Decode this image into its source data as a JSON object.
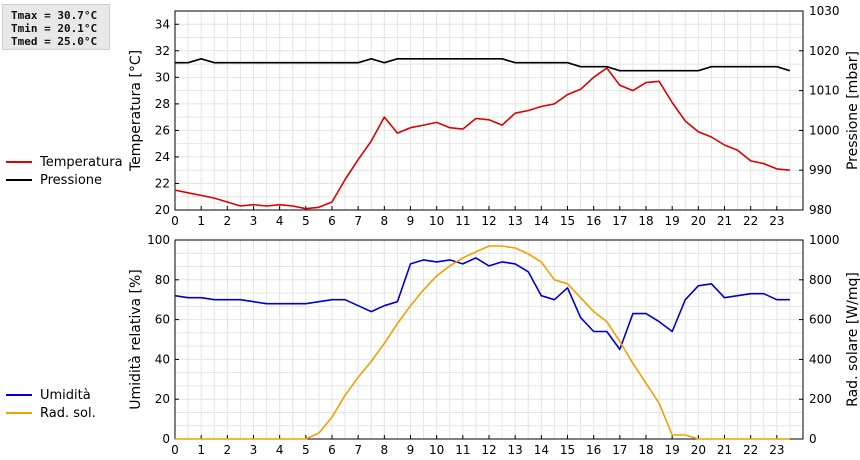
{
  "stats": {
    "tmax": "Tmax = 30.7°C",
    "tmin": "Tmin = 20.1°C",
    "tmed": "Tmed = 25.0°C"
  },
  "legend_top": [
    {
      "label": "Temperatura",
      "color": "#dd0000"
    },
    {
      "label": "Pressione",
      "color": "#000000"
    }
  ],
  "legend_bottom": [
    {
      "label": "Umidità",
      "color": "#0000cc"
    },
    {
      "label": "Rad. sol.",
      "color": "#f0a000"
    }
  ],
  "chart_data": [
    {
      "type": "line",
      "xlabel": "",
      "xlim": [
        0,
        24
      ],
      "x_ticks": [
        0,
        1,
        2,
        3,
        4,
        5,
        6,
        7,
        8,
        9,
        10,
        11,
        12,
        13,
        14,
        15,
        16,
        17,
        18,
        19,
        20,
        21,
        22,
        23
      ],
      "grid": true,
      "y_left": {
        "label": "Temperatura [°C]",
        "lim": [
          20,
          35
        ],
        "ticks": [
          20,
          22,
          24,
          26,
          28,
          30,
          32,
          34
        ]
      },
      "y_right": {
        "label": "Pressione [mbar]",
        "lim": [
          980,
          1030
        ],
        "ticks": [
          980,
          990,
          1000,
          1010,
          1020,
          1030
        ]
      },
      "series": [
        {
          "name": "Temperatura",
          "axis": "left",
          "color": "#dd0000",
          "x": [
            0,
            0.5,
            1,
            1.5,
            2,
            2.5,
            3,
            3.5,
            4,
            4.5,
            5,
            5.5,
            6,
            6.5,
            7,
            7.5,
            8,
            8.5,
            9,
            9.5,
            10,
            10.5,
            11,
            11.5,
            12,
            12.5,
            13,
            13.5,
            14,
            14.5,
            15,
            15.5,
            16,
            16.5,
            17,
            17.5,
            18,
            18.5,
            19,
            19.5,
            20,
            20.5,
            21,
            21.5,
            22,
            22.5,
            23,
            23.5
          ],
          "values": [
            21.5,
            21.3,
            21.1,
            20.9,
            20.6,
            20.3,
            20.4,
            20.3,
            20.4,
            20.3,
            20.1,
            20.2,
            20.6,
            22.3,
            23.8,
            25.2,
            27.0,
            25.8,
            26.2,
            26.4,
            26.6,
            26.2,
            26.1,
            26.9,
            26.8,
            26.4,
            27.3,
            27.5,
            27.8,
            28.0,
            28.7,
            29.1,
            30.0,
            30.7,
            29.4,
            29.0,
            29.6,
            29.7,
            28.1,
            26.7,
            25.9,
            25.5,
            24.9,
            24.5,
            23.7,
            23.5,
            23.1,
            23.0
          ]
        },
        {
          "name": "Pressione",
          "axis": "right",
          "color": "#000000",
          "x": [
            0,
            0.5,
            1,
            1.5,
            2,
            2.5,
            3,
            3.5,
            4,
            4.5,
            5,
            5.5,
            6,
            6.5,
            7,
            7.5,
            8,
            8.5,
            9,
            9.5,
            10,
            10.5,
            11,
            11.5,
            12,
            12.5,
            13,
            13.5,
            14,
            14.5,
            15,
            15.5,
            16,
            16.5,
            17,
            17.5,
            18,
            18.5,
            19,
            19.5,
            20,
            20.5,
            21,
            21.5,
            22,
            22.5,
            23,
            23.5
          ],
          "values": [
            1017,
            1017,
            1018,
            1017,
            1017,
            1017,
            1017,
            1017,
            1017,
            1017,
            1017,
            1017,
            1017,
            1017,
            1017,
            1018,
            1017,
            1018,
            1018,
            1018,
            1018,
            1018,
            1018,
            1018,
            1018,
            1018,
            1017,
            1017,
            1017,
            1017,
            1017,
            1016,
            1016,
            1016,
            1015,
            1015,
            1015,
            1015,
            1015,
            1015,
            1015,
            1016,
            1016,
            1016,
            1016,
            1016,
            1016,
            1015
          ]
        }
      ]
    },
    {
      "type": "line",
      "xlabel": "",
      "xlim": [
        0,
        24
      ],
      "x_ticks": [
        0,
        1,
        2,
        3,
        4,
        5,
        6,
        7,
        8,
        9,
        10,
        11,
        12,
        13,
        14,
        15,
        16,
        17,
        18,
        19,
        20,
        21,
        22,
        23
      ],
      "grid": true,
      "y_left": {
        "label": "Umidità relativa [%]",
        "lim": [
          0,
          100
        ],
        "ticks": [
          0,
          20,
          40,
          60,
          80,
          100
        ]
      },
      "y_right": {
        "label": "Rad. solare [W/mq]",
        "lim": [
          0,
          1000
        ],
        "ticks": [
          0,
          200,
          400,
          600,
          800,
          1000
        ]
      },
      "series": [
        {
          "name": "Umidità",
          "axis": "left",
          "color": "#0000cc",
          "x": [
            0,
            0.5,
            1,
            1.5,
            2,
            2.5,
            3,
            3.5,
            4,
            4.5,
            5,
            5.5,
            6,
            6.5,
            7,
            7.5,
            8,
            8.5,
            9,
            9.5,
            10,
            10.5,
            11,
            11.5,
            12,
            12.5,
            13,
            13.5,
            14,
            14.5,
            15,
            15.5,
            16,
            16.5,
            17,
            17.5,
            18,
            18.5,
            19,
            19.5,
            20,
            20.5,
            21,
            21.5,
            22,
            22.5,
            23,
            23.5
          ],
          "values": [
            72,
            71,
            71,
            70,
            70,
            70,
            69,
            68,
            68,
            68,
            68,
            69,
            70,
            70,
            67,
            64,
            67,
            69,
            88,
            90,
            89,
            90,
            88,
            91,
            87,
            89,
            88,
            84,
            72,
            70,
            76,
            61,
            54,
            54,
            45,
            63,
            63,
            59,
            54,
            70,
            77,
            78,
            71,
            72,
            73,
            73,
            70,
            70
          ]
        },
        {
          "name": "Rad. sol.",
          "axis": "right",
          "color": "#f0a000",
          "x": [
            0,
            0.5,
            1,
            1.5,
            2,
            2.5,
            3,
            3.5,
            4,
            4.5,
            5,
            5.5,
            6,
            6.5,
            7,
            7.5,
            8,
            8.5,
            9,
            9.5,
            10,
            10.5,
            11,
            11.5,
            12,
            12.5,
            13,
            13.5,
            14,
            14.5,
            15,
            15.5,
            16,
            16.5,
            17,
            17.5,
            18,
            18.5,
            19,
            19.5,
            20,
            20.5,
            21,
            21.5,
            22,
            22.5,
            23,
            23.5
          ],
          "values": [
            0,
            0,
            0,
            0,
            0,
            0,
            0,
            0,
            0,
            0,
            0,
            30,
            110,
            220,
            310,
            390,
            480,
            580,
            670,
            750,
            820,
            870,
            910,
            940,
            970,
            970,
            960,
            930,
            890,
            800,
            780,
            710,
            640,
            590,
            490,
            380,
            280,
            180,
            20,
            20,
            0,
            0,
            0,
            0,
            0,
            0,
            0,
            0
          ]
        }
      ]
    }
  ]
}
